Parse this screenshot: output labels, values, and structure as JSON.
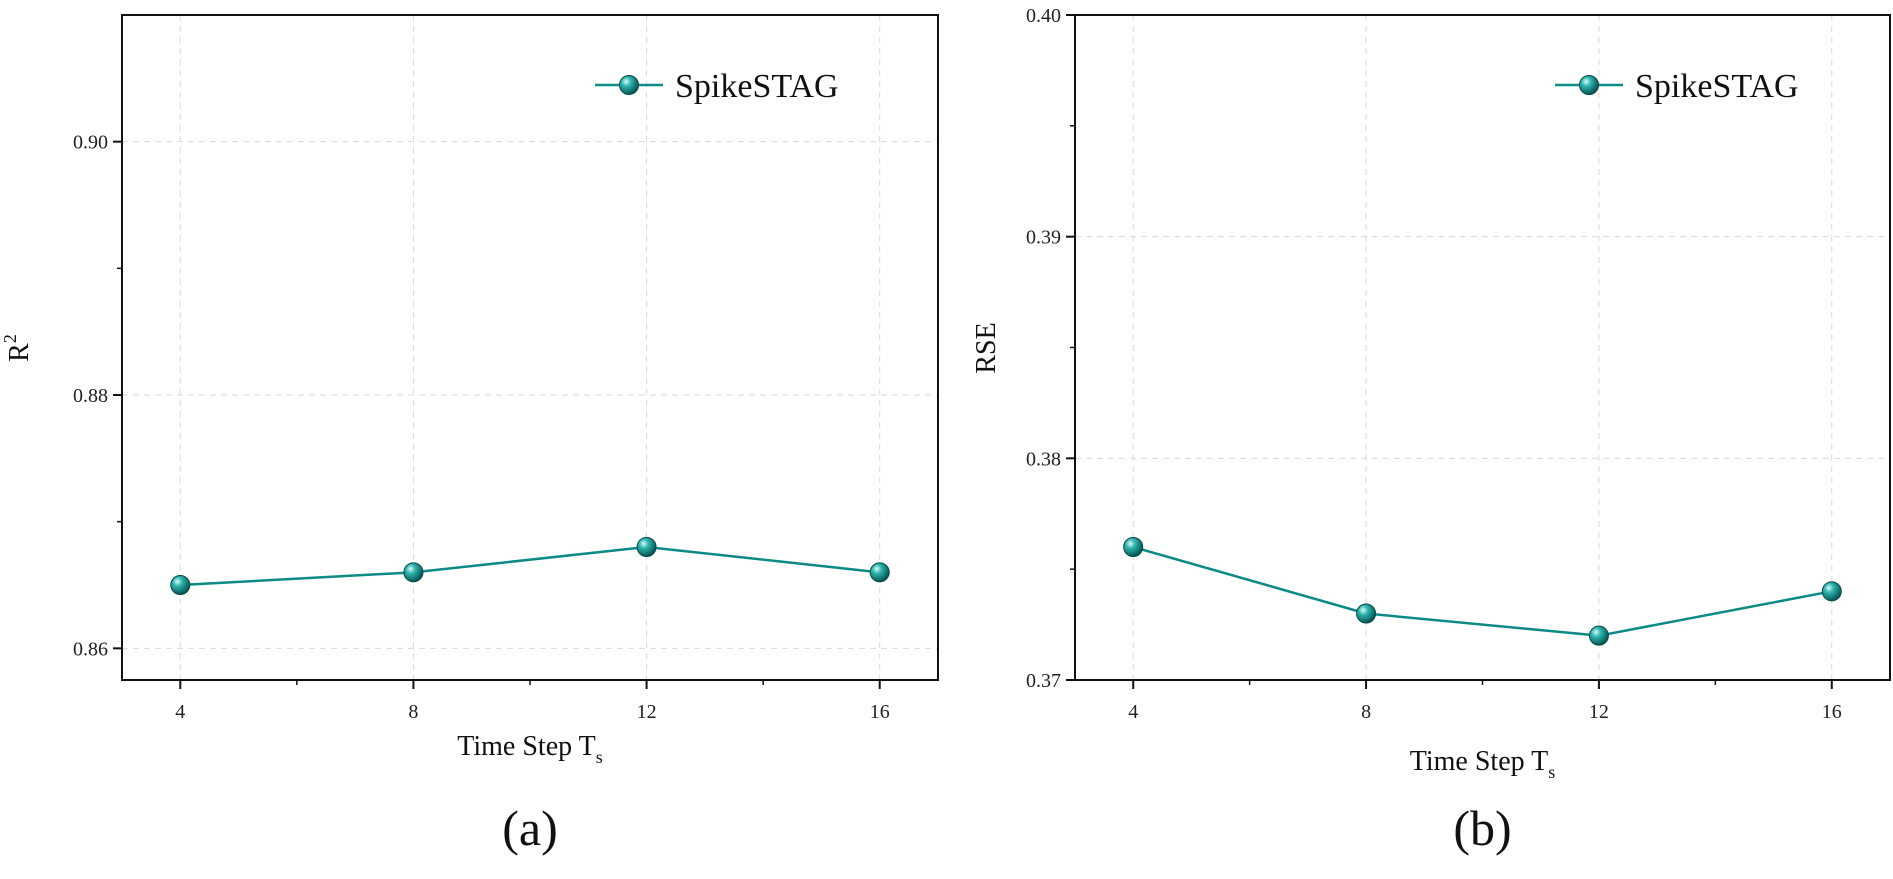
{
  "chart_data": [
    {
      "type": "line",
      "panel_label": "(a)",
      "x": [
        4,
        8,
        12,
        16
      ],
      "xticks": [
        "4",
        "8",
        "12",
        "16"
      ],
      "xlabel": "Time Step T",
      "xlabel_sub": "s",
      "ylabel": "R",
      "ylabel_sup": "2",
      "yticks": [
        "0.86",
        "0.88",
        "0.90"
      ],
      "ytick_values": [
        0.86,
        0.88,
        0.9
      ],
      "xlim": [
        3.0,
        17.0
      ],
      "ylim": [
        0.8575,
        0.91
      ],
      "grid": true,
      "legend_position": "top-right",
      "series": [
        {
          "name": "SpikeSTAG",
          "values": [
            0.865,
            0.866,
            0.868,
            0.866
          ],
          "color": "#0b8a86"
        }
      ]
    },
    {
      "type": "line",
      "panel_label": "(b)",
      "x": [
        4,
        8,
        12,
        16
      ],
      "xticks": [
        "4",
        "8",
        "12",
        "16"
      ],
      "xlabel": "Time Step T",
      "xlabel_sub": "s",
      "ylabel": "RSE",
      "ylabel_sup": "",
      "yticks": [
        "0.37",
        "0.38",
        "0.39",
        "0.40"
      ],
      "ytick_values": [
        0.37,
        0.38,
        0.39,
        0.4
      ],
      "xlim": [
        3.0,
        17.0
      ],
      "ylim": [
        0.37,
        0.4
      ],
      "grid": true,
      "legend_position": "top-right",
      "series": [
        {
          "name": "SpikeSTAG",
          "values": [
            0.376,
            0.373,
            0.372,
            0.374
          ],
          "color": "#0b8a86"
        }
      ]
    }
  ]
}
